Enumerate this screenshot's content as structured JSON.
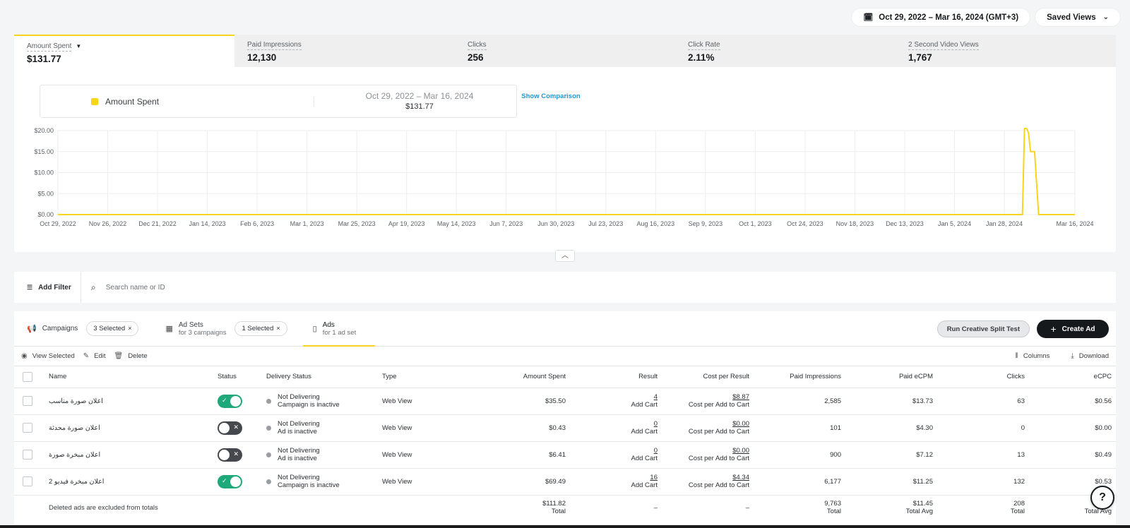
{
  "topbar": {
    "date_range": "Oct 29, 2022 – Mar 16, 2024 (GMT+3)",
    "date_icon": "calendar-icon",
    "saved_views": "Saved Views"
  },
  "metrics": [
    {
      "label": "Amount Spent",
      "value": "$131.77",
      "active": true
    },
    {
      "label": "Paid Impressions",
      "value": "12,130"
    },
    {
      "label": "Clicks",
      "value": "256"
    },
    {
      "label": "Click Rate",
      "value": "2.11%"
    },
    {
      "label": "2 Second Video Views",
      "value": "1,767"
    }
  ],
  "legend": {
    "name": "Amount Spent",
    "range": "Oct 29, 2022 – Mar 16, 2024",
    "total": "$131.77",
    "show_comparison": "Show Comparison"
  },
  "chart_data": {
    "type": "line",
    "series_color": "#f7d51d",
    "ylim": [
      0,
      20
    ],
    "y_ticks": [
      "$0.00",
      "$5.00",
      "$10.00",
      "$15.00",
      "$20.00"
    ],
    "y_tick_values": [
      0,
      5,
      10,
      15,
      20
    ],
    "x_ticks": [
      "Oct 29, 2022",
      "Nov 26, 2022",
      "Dec 21, 2022",
      "Jan 14, 2023",
      "Feb 6, 2023",
      "Mar 1, 2023",
      "Mar 25, 2023",
      "Apr 19, 2023",
      "May 14, 2023",
      "Jun 7, 2023",
      "Jun 30, 2023",
      "Jul 23, 2023",
      "Aug 16, 2023",
      "Sep 9, 2023",
      "Oct 1, 2023",
      "Oct 24, 2023",
      "Nov 18, 2023",
      "Dec 13, 2023",
      "Jan 5, 2024",
      "Jan 28, 2024",
      "Mar 16, 2024"
    ],
    "x_range": [
      "2022-10-29",
      "2024-03-16"
    ],
    "points": [
      {
        "x": "2022-10-29",
        "y": 0
      },
      {
        "x": "2024-02-19",
        "y": 0
      },
      {
        "x": "2024-02-20",
        "y": 20.5
      },
      {
        "x": "2024-02-21",
        "y": 20.5
      },
      {
        "x": "2024-02-22",
        "y": 19.5
      },
      {
        "x": "2024-02-23",
        "y": 15
      },
      {
        "x": "2024-02-25",
        "y": 15
      },
      {
        "x": "2024-02-27",
        "y": 0
      },
      {
        "x": "2024-03-16",
        "y": 0
      }
    ],
    "grid": true
  },
  "filter": {
    "add_filter": "Add Filter",
    "search_placeholder": "Search name or ID"
  },
  "levels": {
    "campaigns": {
      "label": "Campaigns",
      "chip": "3 Selected"
    },
    "adsets": {
      "label": "Ad Sets",
      "sub": "for 3 campaigns",
      "chip": "1 Selected"
    },
    "ads": {
      "label": "Ads",
      "sub": "for 1 ad set"
    },
    "split_test": "Run Creative Split Test",
    "create_ad": "Create Ad"
  },
  "actions": {
    "view_selected": "View Selected",
    "edit": "Edit",
    "delete": "Delete",
    "columns": "Columns",
    "download": "Download"
  },
  "table": {
    "headers": {
      "name": "Name",
      "status": "Status",
      "delivery": "Delivery Status",
      "type": "Type",
      "spent": "Amount Spent",
      "result": "Result",
      "cpr": "Cost per Result",
      "impr": "Paid Impressions",
      "ecpm": "Paid eCPM",
      "clicks": "Clicks",
      "ecpc": "eCPC"
    },
    "rows": [
      {
        "name": "اعلان صورة مناسب",
        "on": true,
        "delivery": "Not Delivering",
        "delivery_sub": "Campaign is inactive",
        "type": "Web View",
        "spent": "$35.50",
        "result": "4",
        "result_sub": "Add Cart",
        "cpr": "$8.87",
        "cpr_sub": "Cost per Add to Cart",
        "impr": "2,585",
        "ecpm": "$13.73",
        "clicks": "63",
        "ecpc": "$0.56"
      },
      {
        "name": "اعلان صورة محدثة",
        "on": false,
        "delivery": "Not Delivering",
        "delivery_sub": "Ad is inactive",
        "type": "Web View",
        "spent": "$0.43",
        "result": "0",
        "result_sub": "Add Cart",
        "cpr": "$0.00",
        "cpr_sub": "Cost per Add to Cart",
        "impr": "101",
        "ecpm": "$4.30",
        "clicks": "0",
        "ecpc": "$0.00"
      },
      {
        "name": "اعلان مبخرة صورة",
        "on": false,
        "delivery": "Not Delivering",
        "delivery_sub": "Ad is inactive",
        "type": "Web View",
        "spent": "$6.41",
        "result": "0",
        "result_sub": "Add Cart",
        "cpr": "$0.00",
        "cpr_sub": "Cost per Add to Cart",
        "impr": "900",
        "ecpm": "$7.12",
        "clicks": "13",
        "ecpc": "$0.49"
      },
      {
        "name": "اعلان مبخرة فيديو 2",
        "on": true,
        "delivery": "Not Delivering",
        "delivery_sub": "Campaign is inactive",
        "type": "Web View",
        "spent": "$69.49",
        "result": "16",
        "result_sub": "Add Cart",
        "cpr": "$4.34",
        "cpr_sub": "Cost per Add to Cart",
        "impr": "6,177",
        "ecpm": "$11.25",
        "clicks": "132",
        "ecpc": "$0.53"
      }
    ],
    "footer": {
      "note": "Deleted ads are excluded from totals",
      "spent": "$111.82",
      "spent_sub": "Total",
      "result": "–",
      "cpr": "–",
      "impr": "9,763",
      "impr_sub": "Total",
      "ecpm": "$11.45",
      "ecpm_sub": "Total Avg",
      "clicks": "208",
      "clicks_sub": "Total",
      "ecpc": "$0.54",
      "ecpc_sub": "Total Avg"
    }
  },
  "help_icon": "help-icon"
}
